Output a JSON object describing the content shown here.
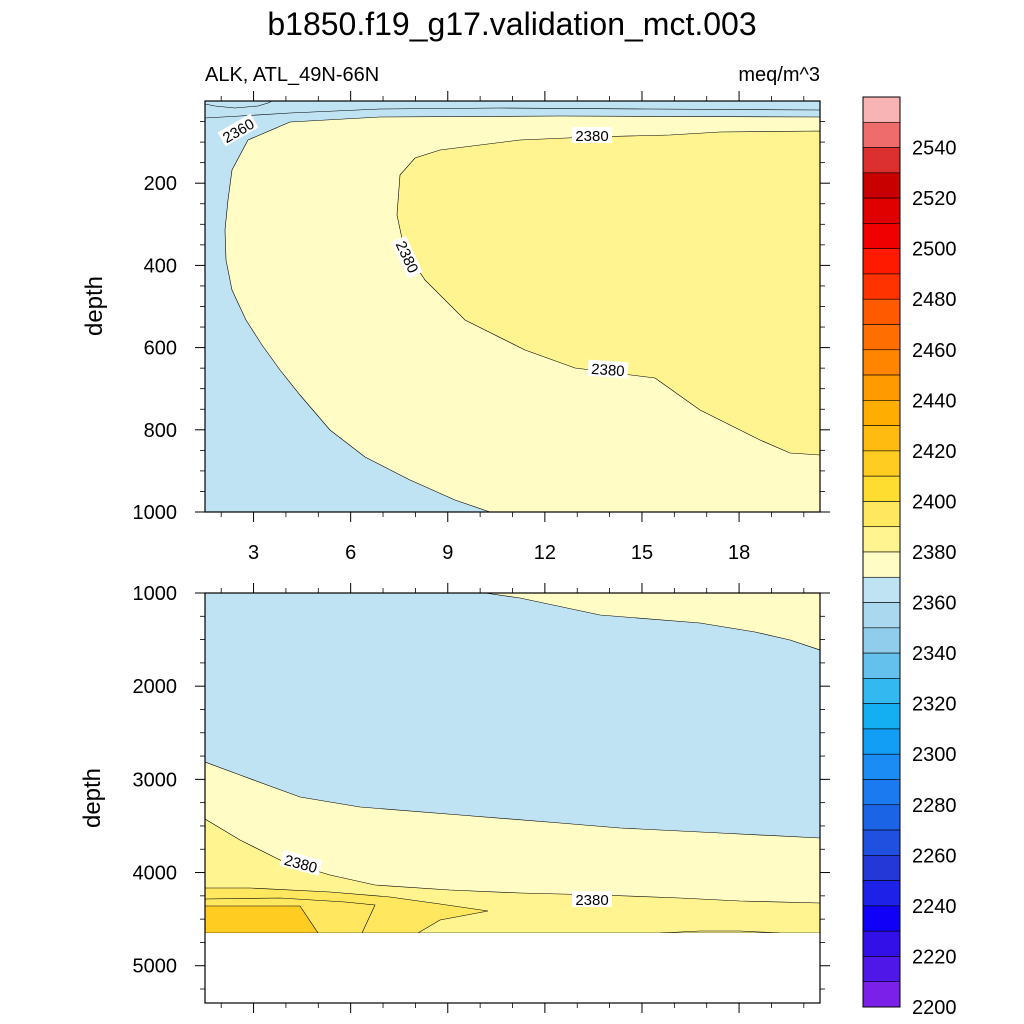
{
  "title": "b1850.f19_g17.validation_mct.003",
  "subtitle_left": "ALK, ATL_49N-66N",
  "subtitle_right": "meq/m^3",
  "colorbar": {
    "labels": [
      "2540",
      "2520",
      "2500",
      "2480",
      "2460",
      "2440",
      "2420",
      "2400",
      "2380",
      "2360",
      "2340",
      "2320",
      "2300",
      "2280",
      "2260",
      "2240",
      "2220",
      "2200"
    ],
    "colors_top_to_bottom": [
      "#f8b4b4",
      "#ee6c6c",
      "#dc3030",
      "#c80000",
      "#e00000",
      "#f00000",
      "#ff1a00",
      "#ff3300",
      "#ff5a00",
      "#ff6e00",
      "#ff8400",
      "#ff9a00",
      "#ffad00",
      "#ffbb10",
      "#ffcc22",
      "#ffdc30",
      "#ffe860",
      "#fff490",
      "#fffcc6",
      "#bfe3f2",
      "#aad9ef",
      "#90cdec",
      "#64c0ec",
      "#34b8f0",
      "#14aef2",
      "#129ef4",
      "#1a8cf4",
      "#1c7af0",
      "#1c64e6",
      "#2050e0",
      "#2438d8",
      "#1e22e8",
      "#1000f8",
      "#3410e8",
      "#5018e8",
      "#7a20e8"
    ]
  },
  "chart_data": [
    {
      "type": "contour",
      "panel": "top",
      "xlabel": "",
      "ylabel": "depth",
      "x_ticks": [
        "3",
        "6",
        "9",
        "12",
        "15",
        "18"
      ],
      "y_ticks": [
        "200",
        "400",
        "600",
        "800",
        "1000"
      ],
      "xlim": [
        1.5,
        20.5
      ],
      "ylim": [
        1000,
        0
      ],
      "contour_labels": [
        {
          "text": "2360",
          "x": 2.6,
          "y": 95
        },
        {
          "text": "2380",
          "x": 13.5,
          "y": 75
        },
        {
          "text": "2380",
          "x": 8.8,
          "y": 365
        },
        {
          "text": "2380",
          "x": 14.1,
          "y": 655
        }
      ],
      "regions": [
        {
          "range": "2360-2370",
          "color": "#bfe3f2",
          "extent": "surface layer and western edge"
        },
        {
          "range": "2370-2380",
          "color": "#fffcc6",
          "extent": "interior band"
        },
        {
          "range": "2380-2390",
          "color": "#fff490",
          "extent": "east, 100-850 m"
        }
      ]
    },
    {
      "type": "contour",
      "panel": "bottom",
      "xlabel": "",
      "ylabel": "depth",
      "x_ticks": [
        "3",
        "6",
        "9",
        "12",
        "15",
        "18"
      ],
      "y_ticks": [
        "1000",
        "2000",
        "3000",
        "4000",
        "5000"
      ],
      "xlim": [
        1.5,
        20.5
      ],
      "ylim": [
        5400,
        1000
      ],
      "contour_labels": [
        {
          "text": "2380",
          "x": 4.7,
          "y": 3900
        },
        {
          "text": "2380",
          "x": 13.5,
          "y": 4270
        }
      ],
      "regions": [
        {
          "range": "2360-2370",
          "color": "#bfe3f2",
          "extent": "1000-3600 m"
        },
        {
          "range": "2370-2380",
          "color": "#fffcc6",
          "extent": "2800-4500 m"
        },
        {
          "range": "2380-2390",
          "color": "#fff490",
          "extent": "3400-4600 m, west and deep"
        },
        {
          "range": "2390-2400",
          "color": "#ffe860",
          "extent": "deep west"
        },
        {
          "range": "2400-2410",
          "color": "#ffcc22",
          "extent": "deep west corner"
        }
      ],
      "no_data_below_m": 4620
    }
  ]
}
